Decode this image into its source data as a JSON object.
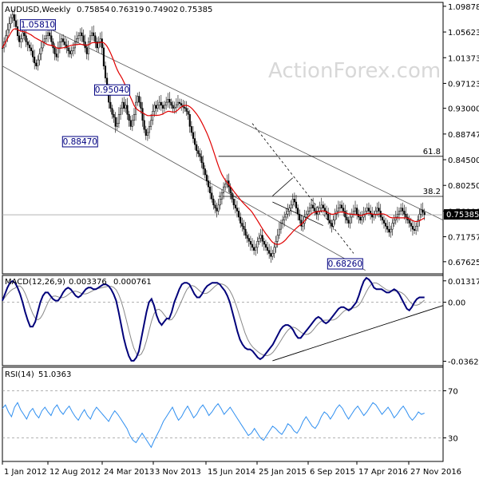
{
  "chart_data": [
    {
      "type": "candlestick",
      "title": "AUDUSD,Weekly",
      "ohlc_values": [
        "0.75854",
        "0.76319",
        "0.74902",
        "0.75385"
      ],
      "watermark": "ActionForex.com",
      "y_ticks": [
        "1.09878",
        "1.05623",
        "1.01373",
        "0.97123",
        "0.93000",
        "0.88747",
        "0.84500",
        "0.80250",
        "0.76000",
        "0.71757",
        "0.67625"
      ],
      "y_tick_values": [
        1.09878,
        1.05623,
        1.01373,
        0.97123,
        0.93,
        0.88747,
        0.845,
        0.8025,
        0.76,
        0.71757,
        0.67625
      ],
      "last_price_label": "0.75385",
      "last_price": 0.75385,
      "x_labels": [
        "1 Jan 2012",
        "12 Aug 2012",
        "24 Mar 2013",
        "3 Nov 2013",
        "15 Jun 2014",
        "25 Jan 2015",
        "6 Sep 2015",
        "17 Apr 2016",
        "27 Nov 2016"
      ],
      "annotations": [
        {
          "label": "1.05810",
          "week": 21,
          "price": 1.0581
        },
        {
          "label": "0.95040",
          "week": 65,
          "price": 0.9504
        },
        {
          "label": "0.88470",
          "week": 46,
          "price": 0.8847
        },
        {
          "label": "0.68260",
          "week": 203,
          "price": 0.6826
        }
      ],
      "fibonacci": [
        {
          "label": "61.8",
          "price": 0.8506
        },
        {
          "label": "38.2",
          "price": 0.7843
        }
      ],
      "price_series_weekly_close": [
        1.03,
        1.04,
        1.05,
        1.06,
        1.07,
        1.08,
        1.085,
        1.075,
        1.065,
        1.05,
        1.04,
        1.045,
        1.055,
        1.05,
        1.04,
        1.035,
        1.03,
        1.025,
        1.015,
        1.005,
        1.0,
        1.01,
        1.02,
        1.03,
        1.04,
        1.045,
        1.05,
        1.055,
        1.05,
        1.04,
        1.03,
        1.02,
        1.015,
        1.03,
        1.04,
        1.045,
        1.04,
        1.035,
        1.03,
        1.025,
        1.02,
        1.025,
        1.03,
        1.04,
        1.045,
        1.05,
        1.055,
        1.05,
        1.04,
        1.03,
        1.02,
        1.04,
        1.05,
        1.055,
        1.05,
        1.04,
        1.03,
        1.04,
        1.045,
        1.03,
        1.0,
        0.98,
        0.96,
        0.94,
        0.93,
        0.92,
        0.915,
        0.9,
        0.905,
        0.92,
        0.93,
        0.94,
        0.93,
        0.935,
        0.92,
        0.91,
        0.9,
        0.91,
        0.92,
        0.94,
        0.95,
        0.94,
        0.93,
        0.91,
        0.895,
        0.885,
        0.89,
        0.9,
        0.91,
        0.925,
        0.935,
        0.93,
        0.935,
        0.94,
        0.935,
        0.93,
        0.935,
        0.94,
        0.945,
        0.94,
        0.935,
        0.93,
        0.932,
        0.936,
        0.94,
        0.938,
        0.935,
        0.932,
        0.93,
        0.925,
        0.92,
        0.9,
        0.89,
        0.88,
        0.87,
        0.86,
        0.855,
        0.85,
        0.84,
        0.83,
        0.82,
        0.81,
        0.8,
        0.79,
        0.78,
        0.77,
        0.765,
        0.76,
        0.77,
        0.78,
        0.79,
        0.8,
        0.805,
        0.81,
        0.8,
        0.79,
        0.78,
        0.77,
        0.765,
        0.76,
        0.75,
        0.74,
        0.735,
        0.73,
        0.72,
        0.715,
        0.71,
        0.705,
        0.7,
        0.695,
        0.7,
        0.71,
        0.715,
        0.72,
        0.71,
        0.705,
        0.7,
        0.695,
        0.69,
        0.685,
        0.69,
        0.7,
        0.71,
        0.72,
        0.73,
        0.74,
        0.745,
        0.75,
        0.755,
        0.76,
        0.765,
        0.77,
        0.78,
        0.775,
        0.765,
        0.755,
        0.745,
        0.735,
        0.74,
        0.75,
        0.755,
        0.76,
        0.765,
        0.77,
        0.765,
        0.76,
        0.755,
        0.76,
        0.765,
        0.77,
        0.765,
        0.76,
        0.755,
        0.745,
        0.74,
        0.735,
        0.745,
        0.755,
        0.76,
        0.765,
        0.77,
        0.765,
        0.76,
        0.75,
        0.745,
        0.74,
        0.75,
        0.755,
        0.76,
        0.765,
        0.755,
        0.75,
        0.745,
        0.75,
        0.755,
        0.76,
        0.765,
        0.76,
        0.755,
        0.75,
        0.755,
        0.76,
        0.765,
        0.76,
        0.75,
        0.745,
        0.74,
        0.735,
        0.73,
        0.725,
        0.73,
        0.74,
        0.745,
        0.75,
        0.755,
        0.76,
        0.765,
        0.76,
        0.755,
        0.75,
        0.745,
        0.74,
        0.735,
        0.73,
        0.728,
        0.735,
        0.745,
        0.755,
        0.762,
        0.758,
        0.754
      ],
      "x_range_weeks": [
        0,
        261
      ],
      "y_range": [
        0.6562,
        1.1052
      ]
    },
    {
      "type": "line",
      "title": "MACD(12,26,9)",
      "values_text": [
        "0.003376",
        "0.000761"
      ],
      "y_ticks": [
        "0.013175",
        "0.00",
        "-0.036292"
      ],
      "y_tick_values": [
        0.013175,
        0,
        -0.036292
      ],
      "y_range": [
        -0.039,
        0.0165
      ],
      "macd_weekly": [
        0.001,
        0.005,
        0.009,
        0.012,
        0.013,
        0.012,
        0.009,
        0.005,
        0.0,
        -0.006,
        -0.011,
        -0.015,
        -0.015,
        -0.012,
        -0.006,
        0.0,
        0.004,
        0.006,
        0.006,
        0.004,
        0.002,
        0.001,
        0.001,
        0.003,
        0.006,
        0.008,
        0.009,
        0.008,
        0.006,
        0.004,
        0.003,
        0.004,
        0.006,
        0.008,
        0.009,
        0.009,
        0.008,
        0.008,
        0.009,
        0.01,
        0.011,
        0.011,
        0.01,
        0.008,
        0.005,
        0.001,
        -0.006,
        -0.014,
        -0.022,
        -0.028,
        -0.033,
        -0.036,
        -0.036,
        -0.034,
        -0.03,
        -0.022,
        -0.014,
        -0.006,
        0.0,
        0.002,
        -0.002,
        -0.008,
        -0.012,
        -0.014,
        -0.012,
        -0.01,
        -0.01,
        -0.006,
        0.0,
        0.004,
        0.008,
        0.011,
        0.012,
        0.012,
        0.011,
        0.008,
        0.005,
        0.003,
        0.003,
        0.005,
        0.008,
        0.01,
        0.011,
        0.012,
        0.012,
        0.012,
        0.011,
        0.009,
        0.007,
        0.004,
        0.0,
        -0.006,
        -0.012,
        -0.018,
        -0.023,
        -0.026,
        -0.028,
        -0.029,
        -0.029,
        -0.03,
        -0.032,
        -0.034,
        -0.035,
        -0.034,
        -0.032,
        -0.03,
        -0.028,
        -0.026,
        -0.023,
        -0.02,
        -0.017,
        -0.015,
        -0.014,
        -0.014,
        -0.015,
        -0.017,
        -0.02,
        -0.022,
        -0.022,
        -0.02,
        -0.018,
        -0.016,
        -0.014,
        -0.012,
        -0.01,
        -0.009,
        -0.01,
        -0.012,
        -0.013,
        -0.012,
        -0.01,
        -0.008,
        -0.006,
        -0.004,
        -0.003,
        -0.003,
        -0.004,
        -0.005,
        -0.004,
        -0.002,
        0.0,
        0.004,
        0.009,
        0.013,
        0.015,
        0.014,
        0.012,
        0.009,
        0.008,
        0.008,
        0.008,
        0.007,
        0.006,
        0.006,
        0.007,
        0.008,
        0.007,
        0.005,
        0.002,
        -0.001,
        -0.004,
        -0.005,
        -0.003,
        0.0,
        0.002,
        0.003,
        0.003,
        0.003
      ]
    },
    {
      "type": "line",
      "title": "RSI(14)",
      "values_text": [
        "51.0363"
      ],
      "y_ticks": [
        "70",
        "30"
      ],
      "y_tick_values": [
        70,
        30
      ],
      "y_range": [
        10,
        90
      ],
      "rsi_weekly": [
        55,
        58,
        52,
        48,
        56,
        60,
        54,
        50,
        46,
        52,
        55,
        50,
        47,
        53,
        56,
        52,
        49,
        55,
        58,
        53,
        50,
        54,
        57,
        52,
        48,
        45,
        50,
        54,
        49,
        46,
        52,
        56,
        53,
        50,
        47,
        44,
        49,
        53,
        50,
        46,
        42,
        38,
        32,
        28,
        26,
        30,
        34,
        30,
        26,
        22,
        28,
        33,
        38,
        44,
        48,
        52,
        56,
        50,
        45,
        48,
        53,
        57,
        52,
        47,
        50,
        55,
        58,
        54,
        49,
        52,
        56,
        59,
        55,
        50,
        53,
        56,
        52,
        48,
        44,
        40,
        36,
        32,
        34,
        38,
        34,
        30,
        28,
        32,
        36,
        40,
        38,
        35,
        33,
        37,
        42,
        40,
        36,
        34,
        38,
        44,
        48,
        44,
        40,
        38,
        42,
        48,
        52,
        50,
        46,
        50,
        55,
        58,
        55,
        50,
        46,
        50,
        54,
        57,
        53,
        49,
        52,
        56,
        60,
        58,
        54,
        50,
        53,
        56,
        52,
        47,
        50,
        54,
        57,
        53,
        48,
        45,
        48,
        52,
        50,
        51
      ]
    }
  ]
}
